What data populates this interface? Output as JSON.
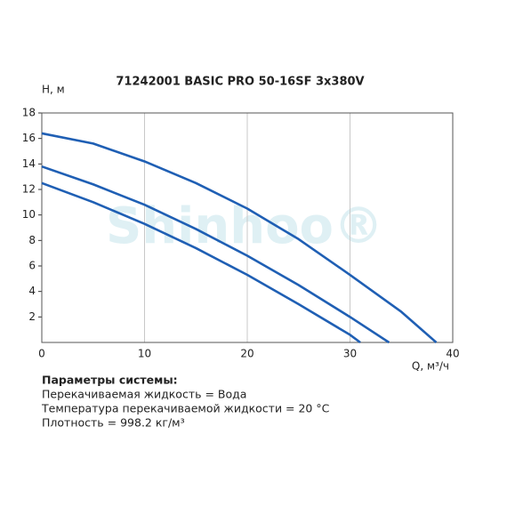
{
  "chart_data": {
    "type": "line",
    "title": "71242001 BASIC PRO 50-16SF 3x380V",
    "y_label": "H, м",
    "x_label": "Q, м³/ч",
    "watermark": "Shinhoo®",
    "xlim": [
      0,
      40
    ],
    "ylim": [
      0,
      18
    ],
    "xticks": [
      0,
      10,
      20,
      30,
      40
    ],
    "yticks": [
      2,
      4,
      6,
      8,
      10,
      12,
      14,
      16,
      18
    ],
    "grid": "x",
    "series": [
      {
        "color": "#1f5fb4",
        "x": [
          0,
          5,
          10,
          15,
          20,
          25,
          30,
          35,
          38.4
        ],
        "values": [
          16.4,
          15.6,
          14.2,
          12.5,
          10.5,
          8.1,
          5.3,
          2.4,
          0
        ]
      },
      {
        "color": "#1f5fb4",
        "x": [
          0,
          5,
          10,
          15,
          20,
          25,
          30,
          33.8
        ],
        "values": [
          13.8,
          12.4,
          10.8,
          8.9,
          6.8,
          4.5,
          2.0,
          0
        ]
      },
      {
        "color": "#1f5fb4",
        "x": [
          0,
          5,
          10,
          15,
          20,
          25,
          30,
          31
        ],
        "values": [
          12.5,
          11.0,
          9.3,
          7.4,
          5.3,
          3.0,
          0.6,
          0
        ]
      }
    ]
  },
  "parameters": {
    "heading": "Параметры системы:",
    "lines": [
      "Перекачиваемая жидкость = Вода",
      "Температура перекачиваемой жидкости = 20 °C",
      "Плотность = 998.2 кг/м³"
    ]
  }
}
